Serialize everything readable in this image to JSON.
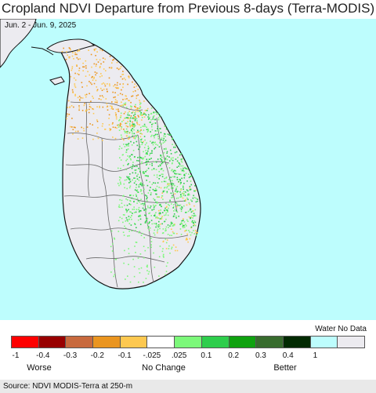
{
  "title": "Cropland NDVI Departure from Previous 8-days (Terra-MODIS)",
  "subtitle": "Jun. 2 - Jun. 9, 2025",
  "legend": {
    "nodata_label": "Water No Data",
    "swatches": [
      {
        "name": "minus-1-to-minus-0.4",
        "color": "#fe0000"
      },
      {
        "name": "minus-0.4-to-minus-0.3",
        "color": "#980000"
      },
      {
        "name": "minus-0.3-to-minus-0.2",
        "color": "#c86a3e"
      },
      {
        "name": "minus-0.2-to-minus-0.1",
        "color": "#ea9520"
      },
      {
        "name": "minus-0.1-to-minus-0.025",
        "color": "#fdc850"
      },
      {
        "name": "no-change",
        "color": "#ffffff"
      },
      {
        "name": "0.025-to-0.1",
        "color": "#7cf87a"
      },
      {
        "name": "0.1-to-0.2",
        "color": "#2ece4c"
      },
      {
        "name": "0.2-to-0.3",
        "color": "#0fa20f"
      },
      {
        "name": "0.3-to-0.4",
        "color": "#386c2e"
      },
      {
        "name": "0.4-to-1",
        "color": "#022a02"
      },
      {
        "name": "water",
        "color": "#bdfdfd"
      },
      {
        "name": "no-data",
        "color": "#ecebf0"
      }
    ],
    "ticks": [
      "-1",
      "-0.4",
      "-0.3",
      "-0.2",
      "-0.1",
      "-.025",
      ".025",
      "0.1",
      "0.2",
      "0.3",
      "0.4",
      "1"
    ],
    "captions": {
      "worse": "Worse",
      "no_change": "No Change",
      "better": "Better"
    }
  },
  "source": "Source: NDVI MODIS-Terra at 250-m",
  "colors": {
    "ocean": "#bdfdfd",
    "land": "#ecebf0",
    "border": "#555555",
    "coast": "#111111"
  }
}
